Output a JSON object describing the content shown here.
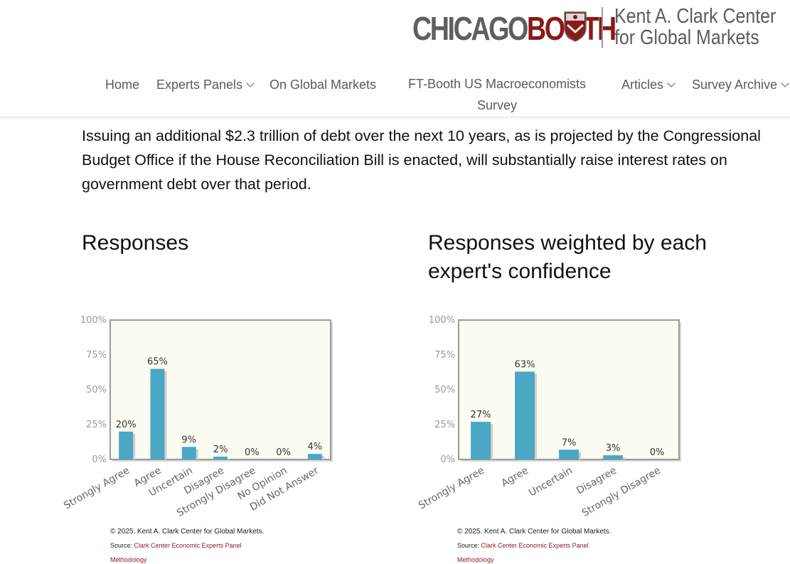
{
  "logo": {
    "chicago": "CHICAGO",
    "booth": "BOOTH",
    "center_name_line1": "Kent A. Clark Center",
    "center_name_line2": "for Global Markets"
  },
  "nav": {
    "home": "Home",
    "experts_panels": "Experts Panels",
    "on_global_markets": "On Global Markets",
    "ft_booth_line1": "FT-Booth US Macroeconomists",
    "ft_booth_line2": "Survey",
    "articles": "Articles",
    "survey_archive": "Survey Archive"
  },
  "question": {
    "text": "Issuing an additional $2.3 trillion of debt over the next 10 years, as is projected by the Congressional Budget Office if the House Reconciliation Bill is enacted, will substantially raise interest rates on government debt over that period."
  },
  "sections": {
    "responses_title": "Responses",
    "weighted_title_line1": "Responses weighted by each",
    "weighted_title_line2": "expert's confidence"
  },
  "chart_data": [
    {
      "type": "bar",
      "categories": [
        "Strongly Agree",
        "Agree",
        "Uncertain",
        "Disagree",
        "Strongly Disagree",
        "No Opinion",
        "Did Not Answer"
      ],
      "values": [
        20,
        65,
        9,
        2,
        0,
        0,
        4
      ],
      "value_labels": [
        "20%",
        "65%",
        "9%",
        "2%",
        "0%",
        "0%",
        "4%"
      ],
      "ylim": [
        0,
        100
      ],
      "yticks": [
        "0%",
        "25%",
        "50%",
        "75%",
        "100%"
      ],
      "grid": false
    },
    {
      "type": "bar",
      "categories": [
        "Strongly Agree",
        "Agree",
        "Uncertain",
        "Disagree",
        "Strongly Disagree"
      ],
      "values": [
        27,
        63,
        7,
        3,
        0
      ],
      "value_labels": [
        "27%",
        "63%",
        "7%",
        "3%",
        "0%"
      ],
      "ylim": [
        0,
        100
      ],
      "yticks": [
        "0%",
        "25%",
        "50%",
        "75%",
        "100%"
      ],
      "grid": false
    }
  ],
  "footer": {
    "copyright": "© 2025. Kent A. Clark Center for Global Markets.",
    "source_prefix": "Source: ",
    "source_link": "Clark Center Economic Experts Panel",
    "methodology": "Methodology"
  },
  "colors": {
    "bar": "#4aa8c4",
    "bar_shadow": "#cfcfcf",
    "plot_bg": "#fdfcf3",
    "plot_border": "#9a9a9a",
    "brand_red": "#8a1a1a",
    "brand_gray": "#5f5f5f"
  }
}
